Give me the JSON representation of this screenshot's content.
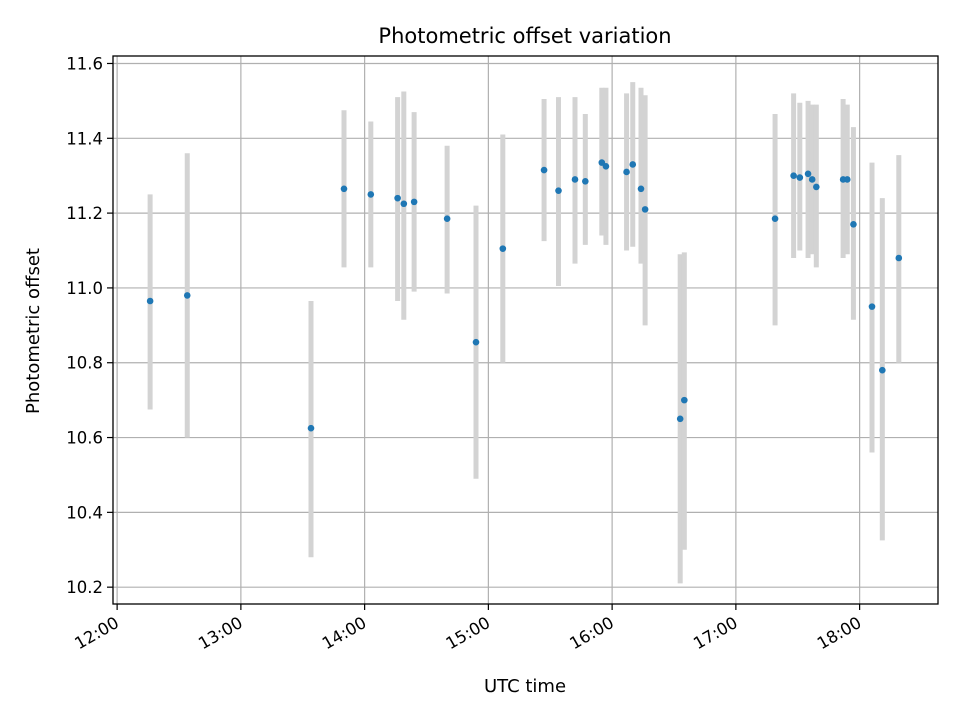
{
  "chart_data": {
    "type": "scatter",
    "title": "Photometric offset variation",
    "xlabel": "UTC time",
    "ylabel": "Photometric offset",
    "x_ticks": [
      "12:00",
      "13:00",
      "14:00",
      "15:00",
      "16:00",
      "17:00",
      "18:00"
    ],
    "y_ticks": [
      "10.2",
      "10.4",
      "10.6",
      "10.8",
      "11.0",
      "11.2",
      "11.4",
      "11.6"
    ],
    "xlim": [
      "11:58",
      "18:38"
    ],
    "ylim": [
      10.155,
      11.62
    ],
    "grid": true,
    "colors": {
      "point": "#1f77b4",
      "errorbar": "#d3d3d3",
      "grid": "#b0b0b0"
    },
    "series": [
      {
        "points": [
          {
            "x": "12:16",
            "y": 10.965,
            "ylow": 10.675,
            "yhigh": 11.25
          },
          {
            "x": "12:34",
            "y": 10.98,
            "ylow": 10.6,
            "yhigh": 11.36
          },
          {
            "x": "13:34",
            "y": 10.625,
            "ylow": 10.28,
            "yhigh": 10.965
          },
          {
            "x": "13:50",
            "y": 11.265,
            "ylow": 11.055,
            "yhigh": 11.475
          },
          {
            "x": "14:03",
            "y": 11.25,
            "ylow": 11.055,
            "yhigh": 11.445
          },
          {
            "x": "14:16",
            "y": 11.24,
            "ylow": 10.965,
            "yhigh": 11.51
          },
          {
            "x": "14:19",
            "y": 11.225,
            "ylow": 10.915,
            "yhigh": 11.525
          },
          {
            "x": "14:24",
            "y": 11.23,
            "ylow": 10.99,
            "yhigh": 11.47
          },
          {
            "x": "14:40",
            "y": 11.185,
            "ylow": 10.985,
            "yhigh": 11.38
          },
          {
            "x": "14:54",
            "y": 10.855,
            "ylow": 10.49,
            "yhigh": 11.22
          },
          {
            "x": "15:07",
            "y": 11.105,
            "ylow": 10.8,
            "yhigh": 11.41
          },
          {
            "x": "15:27",
            "y": 11.315,
            "ylow": 11.125,
            "yhigh": 11.505
          },
          {
            "x": "15:34",
            "y": 11.26,
            "ylow": 11.005,
            "yhigh": 11.51
          },
          {
            "x": "15:42",
            "y": 11.29,
            "ylow": 11.065,
            "yhigh": 11.51
          },
          {
            "x": "15:47",
            "y": 11.285,
            "ylow": 11.115,
            "yhigh": 11.465
          },
          {
            "x": "15:55",
            "y": 11.335,
            "ylow": 11.14,
            "yhigh": 11.535
          },
          {
            "x": "15:57",
            "y": 11.325,
            "ylow": 11.115,
            "yhigh": 11.535
          },
          {
            "x": "16:07",
            "y": 11.31,
            "ylow": 11.1,
            "yhigh": 11.52
          },
          {
            "x": "16:10",
            "y": 11.33,
            "ylow": 11.11,
            "yhigh": 11.55
          },
          {
            "x": "16:14",
            "y": 11.265,
            "ylow": 11.065,
            "yhigh": 11.535
          },
          {
            "x": "16:16",
            "y": 11.21,
            "ylow": 10.9,
            "yhigh": 11.515
          },
          {
            "x": "16:33",
            "y": 10.65,
            "ylow": 10.21,
            "yhigh": 11.09
          },
          {
            "x": "16:35",
            "y": 10.7,
            "ylow": 10.3,
            "yhigh": 11.095
          },
          {
            "x": "17:19",
            "y": 11.185,
            "ylow": 10.9,
            "yhigh": 11.465
          },
          {
            "x": "17:28",
            "y": 11.3,
            "ylow": 11.08,
            "yhigh": 11.52
          },
          {
            "x": "17:31",
            "y": 11.295,
            "ylow": 11.1,
            "yhigh": 11.495
          },
          {
            "x": "17:35",
            "y": 11.305,
            "ylow": 11.08,
            "yhigh": 11.5
          },
          {
            "x": "17:37",
            "y": 11.29,
            "ylow": 11.09,
            "yhigh": 11.49
          },
          {
            "x": "17:39",
            "y": 11.27,
            "ylow": 11.055,
            "yhigh": 11.49
          },
          {
            "x": "17:52",
            "y": 11.29,
            "ylow": 11.08,
            "yhigh": 11.505
          },
          {
            "x": "17:54",
            "y": 11.29,
            "ylow": 11.09,
            "yhigh": 11.49
          },
          {
            "x": "17:57",
            "y": 11.17,
            "ylow": 10.915,
            "yhigh": 11.43
          },
          {
            "x": "18:06",
            "y": 10.95,
            "ylow": 10.56,
            "yhigh": 11.335
          },
          {
            "x": "18:11",
            "y": 10.78,
            "ylow": 10.325,
            "yhigh": 11.24
          },
          {
            "x": "18:19",
            "y": 11.08,
            "ylow": 10.8,
            "yhigh": 11.355
          }
        ]
      }
    ]
  }
}
